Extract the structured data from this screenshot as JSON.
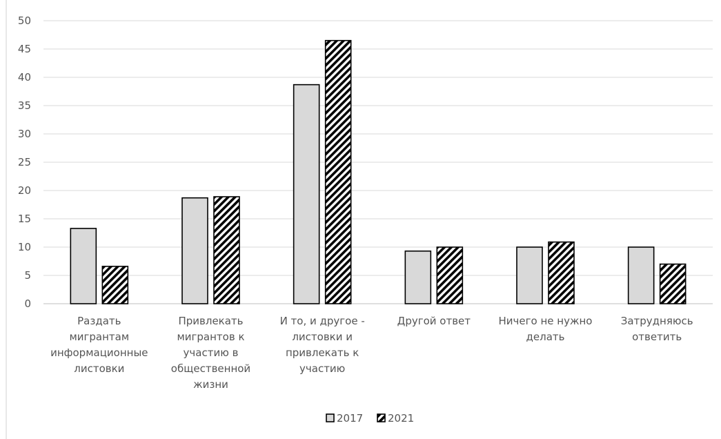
{
  "chart_data": {
    "type": "bar",
    "title": "",
    "xlabel": "",
    "ylabel": "",
    "ylim": [
      0,
      50
    ],
    "yticks": [
      0,
      5,
      10,
      15,
      20,
      25,
      30,
      35,
      40,
      45,
      50
    ],
    "grid": true,
    "legend_position": "bottom",
    "categories": [
      [
        "Раздать",
        "мигрантам",
        "информационные",
        "листовки"
      ],
      [
        "Привлекать",
        "мигрантов к",
        "участию в",
        "общественной",
        "жизни"
      ],
      [
        "И то, и другое -",
        "листовки и",
        "привлекать к",
        "участию"
      ],
      [
        "Другой ответ"
      ],
      [
        "Ничего не нужно",
        "делать"
      ],
      [
        "Затрудняюсь",
        "ответить"
      ]
    ],
    "series": [
      {
        "name": "2017",
        "values": [
          13.3,
          18.7,
          38.7,
          9.3,
          10.0,
          10.0
        ],
        "fill": "#d9d9d9",
        "pattern": "solid"
      },
      {
        "name": "2021",
        "values": [
          6.6,
          18.9,
          46.5,
          10.0,
          10.9,
          7.0
        ],
        "fill": "#ffffff",
        "pattern": "diagonal-hatch"
      }
    ],
    "colors": {
      "bar_stroke": "#000000",
      "hatch": "#000000",
      "grid": "#d9d9d9",
      "axis": "#bfbfbf",
      "text": "#555555"
    }
  }
}
